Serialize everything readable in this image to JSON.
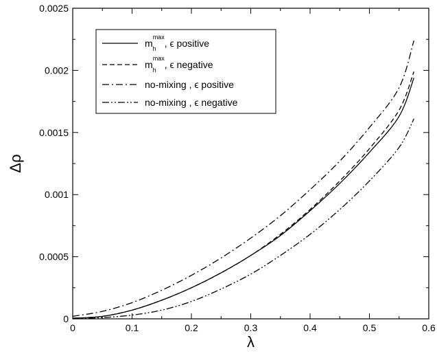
{
  "chart_data": {
    "type": "line",
    "xlabel": "λ",
    "ylabel": "Δρ",
    "xlim": [
      0,
      0.6
    ],
    "ylim": [
      0,
      0.0025
    ],
    "xticks": [
      "0",
      "0.1",
      "0.2",
      "0.3",
      "0.4",
      "0.5",
      "0.6"
    ],
    "yticks": [
      "0",
      "0.0005",
      "0.001",
      "0.0015",
      "0.002",
      "0.0025"
    ],
    "grid": false,
    "legend_position": "top-left",
    "series": [
      {
        "name": "m_h^max, ϵ positive",
        "label_parts": {
          "m": "m",
          "sub": "h",
          "sup": "max",
          "rest": ", ϵ  positive"
        },
        "dash": "solid",
        "x": [
          0,
          0.05,
          0.1,
          0.15,
          0.2,
          0.25,
          0.3,
          0.35,
          0.4,
          0.45,
          0.5,
          0.55,
          0.575
        ],
        "y": [
          5e-06,
          2e-05,
          7e-05,
          0.00015,
          0.00025,
          0.00037,
          0.00051,
          0.00067,
          0.00087,
          0.00109,
          0.00134,
          0.00163,
          0.00194
        ]
      },
      {
        "name": "m_h^max, ϵ negative",
        "label_parts": {
          "m": "m",
          "sub": "h",
          "sup": "max",
          "rest": ", ϵ  negative"
        },
        "dash": "dashed",
        "x": [
          0,
          0.05,
          0.1,
          0.15,
          0.2,
          0.25,
          0.3,
          0.35,
          0.4,
          0.45,
          0.5,
          0.55,
          0.575
        ],
        "y": [
          5e-06,
          2e-05,
          7e-05,
          0.00015,
          0.00025,
          0.00037,
          0.00051,
          0.00068,
          0.00088,
          0.00111,
          0.00137,
          0.00168,
          0.00199
        ]
      },
      {
        "name": "no-mixing , ϵ positive",
        "label_parts": {
          "rest": "no-mixing , ϵ positive"
        },
        "dash": "dashdot",
        "x": [
          0,
          0.05,
          0.1,
          0.15,
          0.2,
          0.25,
          0.3,
          0.35,
          0.4,
          0.45,
          0.5,
          0.55,
          0.575
        ],
        "y": [
          2e-05,
          6e-05,
          0.00013,
          0.00023,
          0.00035,
          0.00049,
          0.00065,
          0.00083,
          0.00104,
          0.00127,
          0.00154,
          0.00186,
          0.00224
        ]
      },
      {
        "name": "no-mixing , ϵ negative",
        "label_parts": {
          "rest": "no-mixing , ϵ negative"
        },
        "dash": "dashdotdot",
        "x": [
          0,
          0.05,
          0.1,
          0.15,
          0.2,
          0.25,
          0.3,
          0.35,
          0.4,
          0.45,
          0.5,
          0.55,
          0.575
        ],
        "y": [
          0,
          1e-05,
          3e-05,
          7e-05,
          0.00014,
          0.00024,
          0.00036,
          0.00051,
          0.00068,
          0.00088,
          0.00111,
          0.00138,
          0.00161
        ]
      }
    ]
  }
}
